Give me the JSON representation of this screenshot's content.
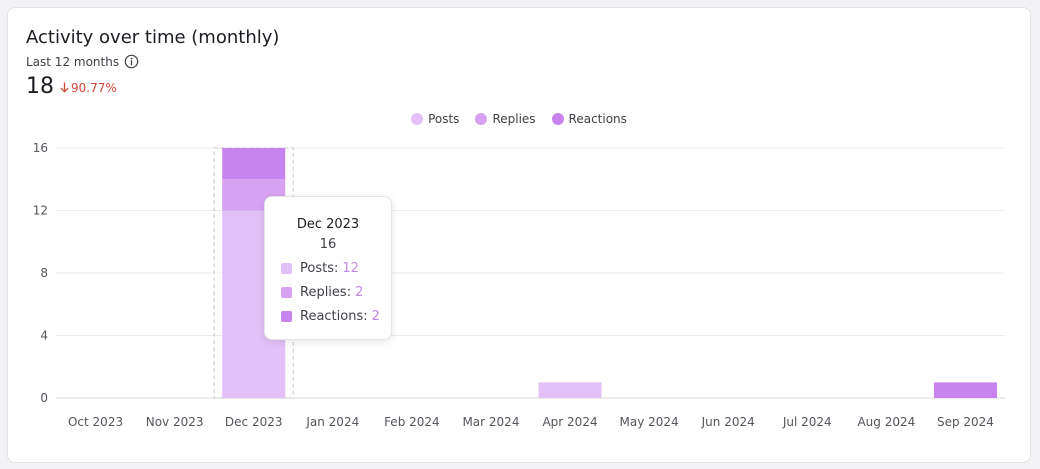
{
  "header": {
    "title": "Activity over time (monthly)",
    "subtitle": "Last 12 months",
    "kpi_value": "18",
    "kpi_delta": "90.77%"
  },
  "colors": {
    "posts": "#e3c0f8",
    "replies": "#d7a2f2",
    "reactions": "#c784ee",
    "negative": "#d4453a"
  },
  "icons": {
    "info": "info-circle-icon",
    "delta": "arrow-down-icon"
  },
  "legend": [
    {
      "key": "posts",
      "label": "Posts"
    },
    {
      "key": "replies",
      "label": "Replies"
    },
    {
      "key": "reactions",
      "label": "Reactions"
    }
  ],
  "tooltip": {
    "title": "Dec 2023",
    "total": "16",
    "rows": [
      {
        "key": "posts",
        "label": "Posts:",
        "value": "12"
      },
      {
        "key": "replies",
        "label": "Replies:",
        "value": "2"
      },
      {
        "key": "reactions",
        "label": "Reactions:",
        "value": "2"
      }
    ]
  },
  "chart_data": {
    "type": "bar",
    "stacked": true,
    "categories": [
      "Oct 2023",
      "Nov 2023",
      "Dec 2023",
      "Jan 2024",
      "Feb 2024",
      "Mar 2024",
      "Apr 2024",
      "May 2024",
      "Jun 2024",
      "Jul 2024",
      "Aug 2024",
      "Sep 2024"
    ],
    "series": [
      {
        "name": "Posts",
        "key": "posts",
        "values": [
          0,
          0,
          12,
          0,
          0,
          0,
          1,
          0,
          0,
          0,
          0,
          0
        ]
      },
      {
        "name": "Replies",
        "key": "replies",
        "values": [
          0,
          0,
          2,
          0,
          0,
          0,
          0,
          0,
          0,
          0,
          0,
          0
        ]
      },
      {
        "name": "Reactions",
        "key": "reactions",
        "values": [
          0,
          0,
          2,
          0,
          0,
          0,
          0,
          0,
          0,
          0,
          0,
          1
        ]
      }
    ],
    "yticks": [
      0,
      4,
      8,
      12,
      16
    ],
    "ylim": [
      0,
      16
    ],
    "grid": true,
    "legend_position": "top-center",
    "highlighted_category": "Dec 2023"
  }
}
